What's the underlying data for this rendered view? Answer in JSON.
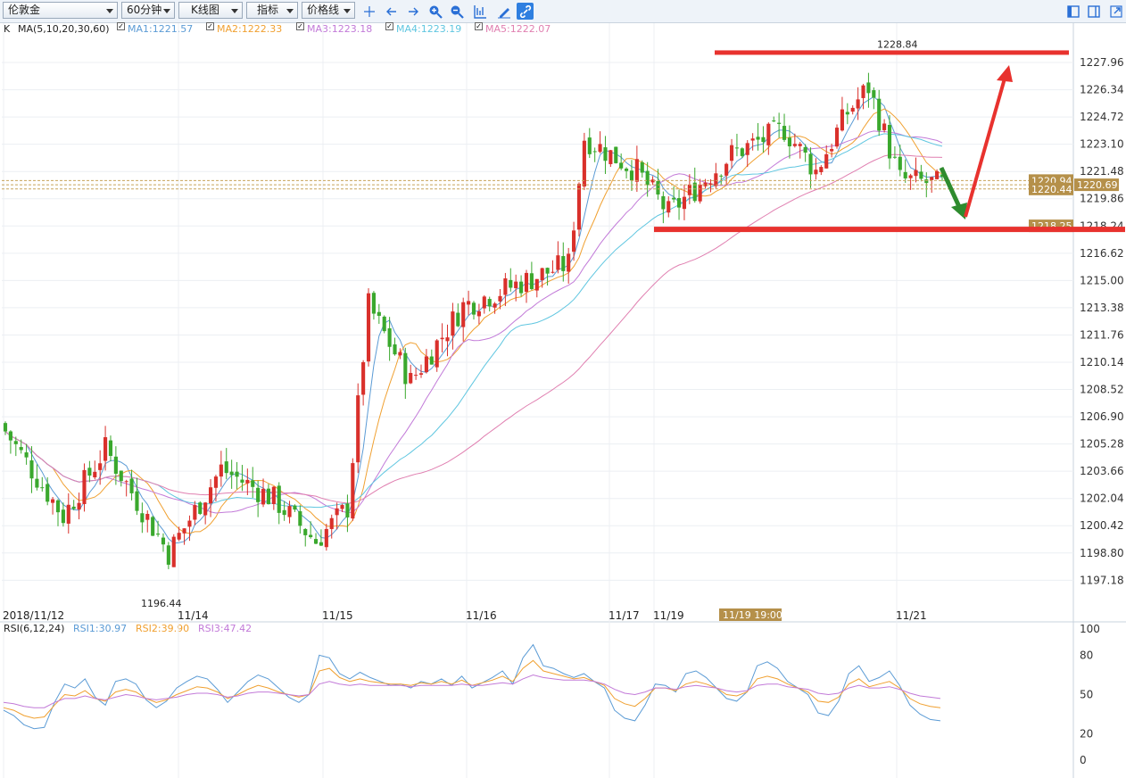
{
  "toolbar": {
    "symbol": "伦敦金",
    "period": "60分钟",
    "chart_type": "K线图",
    "indicator": "指标",
    "price_line": "价格线",
    "icons": [
      "crosshair-icon",
      "arrow-left-icon",
      "arrow-right-icon",
      "zoom-in-icon",
      "zoom-out-icon",
      "draw-line-icon",
      "pencil-icon",
      "link-icon"
    ],
    "right_icons": [
      "layout-left-icon",
      "layout-window-icon",
      "expand-icon"
    ]
  },
  "ma_legend": {
    "prefix": "K",
    "ma_title": "MA(5,10,20,30,60)",
    "items": [
      {
        "label": "MA1:1221.57",
        "color": "#5b9bd5"
      },
      {
        "label": "MA2:1222.33",
        "color": "#f0a030"
      },
      {
        "label": "MA3:1223.18",
        "color": "#c27ad8"
      },
      {
        "label": "MA4:1223.19",
        "color": "#5fc6e0"
      },
      {
        "label": "MA5:1222.07",
        "color": "#e07fb0"
      }
    ]
  },
  "price_axis": {
    "ticks": [
      "1227.96",
      "1226.34",
      "1224.72",
      "1223.10",
      "1221.48",
      "1219.86",
      "1218.24",
      "1216.62",
      "1215.00",
      "1213.38",
      "1211.76",
      "1210.14",
      "1208.52",
      "1206.90",
      "1205.28",
      "1203.66",
      "1202.04",
      "1200.42",
      "1198.80",
      "1197.18"
    ],
    "markers": [
      {
        "label": "1220.94",
        "value": 1220.94
      },
      {
        "label": "1220.69",
        "value": 1220.69
      },
      {
        "label": "1220.44",
        "value": 1220.44
      },
      {
        "label": "1218.25",
        "value": 1218.25
      }
    ]
  },
  "annotations": {
    "high_label": "1228.84",
    "low_label": "1196.44",
    "resistance_level": 1228.84,
    "support_level": 1218.25
  },
  "time_axis": {
    "labels": [
      "2018/11/12",
      "11/14",
      "11/15",
      "11/16",
      "11/17",
      "11/19",
      "11/21"
    ],
    "cursor_label": "11/19 19:00"
  },
  "rsi_legend": {
    "title": "RSI(6,12,24)",
    "items": [
      {
        "label": "RSI1:30.97",
        "color": "#5b9bd5"
      },
      {
        "label": "RSI2:39.90",
        "color": "#f0a030"
      },
      {
        "label": "RSI3:47.42",
        "color": "#c27ad8"
      }
    ]
  },
  "rsi_axis": {
    "ticks": [
      "100",
      "80",
      "50",
      "20",
      "0"
    ]
  },
  "colors": {
    "up": "#d9302b",
    "down": "#3aa82d",
    "annotation_red": "#e8322e",
    "annotation_green": "#2e8b2e",
    "marker_bg": "#b5904a"
  },
  "chart_data": {
    "type": "candlestick",
    "ylim": [
      1195.5,
      1229.5
    ],
    "x_labels": [
      "2018/11/12",
      "11/14",
      "11/15",
      "11/16",
      "11/17",
      "11/19",
      "11/21"
    ],
    "segments": [
      {
        "from": 1206.5,
        "to": 1201.0,
        "n": 12
      },
      {
        "from": 1201.0,
        "to": 1205.0,
        "n": 8
      },
      {
        "from": 1205.0,
        "to": 1198.8,
        "n": 12
      },
      {
        "from": 1198.8,
        "to": 1203.8,
        "n": 10
      },
      {
        "from": 1203.8,
        "to": 1202.0,
        "n": 10
      },
      {
        "from": 1202.0,
        "to": 1199.5,
        "n": 8
      },
      {
        "from": 1199.5,
        "to": 1201.5,
        "n": 6
      },
      {
        "from": 1201.5,
        "to": 1213.5,
        "n": 4
      },
      {
        "from": 1213.5,
        "to": 1209.0,
        "n": 8
      },
      {
        "from": 1209.0,
        "to": 1213.5,
        "n": 10
      },
      {
        "from": 1213.5,
        "to": 1216.0,
        "n": 20
      },
      {
        "from": 1216.0,
        "to": 1223.5,
        "n": 3
      },
      {
        "from": 1223.5,
        "to": 1221.5,
        "n": 10
      },
      {
        "from": 1221.5,
        "to": 1219.0,
        "n": 6
      },
      {
        "from": 1219.0,
        "to": 1222.5,
        "n": 12
      },
      {
        "from": 1222.5,
        "to": 1224.0,
        "n": 10
      },
      {
        "from": 1224.0,
        "to": 1221.5,
        "n": 6
      },
      {
        "from": 1221.5,
        "to": 1225.0,
        "n": 6
      },
      {
        "from": 1225.0,
        "to": 1226.5,
        "n": 4
      },
      {
        "from": 1226.5,
        "to": 1221.0,
        "n": 6
      },
      {
        "from": 1221.0,
        "to": 1220.7,
        "n": 8
      }
    ],
    "rsi": {
      "series": [
        {
          "name": "RSI1",
          "values": [
            38,
            34,
            27,
            24,
            25,
            44,
            58,
            55,
            62,
            48,
            42,
            60,
            62,
            58,
            46,
            40,
            45,
            55,
            60,
            64,
            62,
            54,
            44,
            52,
            60,
            65,
            62,
            55,
            48,
            44,
            50,
            80,
            78,
            66,
            62,
            67,
            63,
            60,
            57,
            58,
            55,
            60,
            58,
            62,
            57,
            64,
            55,
            59,
            63,
            68,
            58,
            78,
            88,
            72,
            70,
            66,
            63,
            66,
            60,
            55,
            38,
            32,
            30,
            42,
            58,
            57,
            52,
            66,
            68,
            63,
            55,
            47,
            45,
            52,
            72,
            75,
            70,
            60,
            55,
            50,
            36,
            34,
            45,
            66,
            72,
            60,
            63,
            68,
            57,
            42,
            35,
            31,
            30
          ]
        },
        {
          "name": "RSI2",
          "values": [
            40,
            38,
            34,
            32,
            33,
            42,
            50,
            49,
            53,
            47,
            45,
            52,
            54,
            52,
            47,
            44,
            46,
            50,
            53,
            56,
            55,
            52,
            47,
            50,
            54,
            57,
            55,
            52,
            50,
            48,
            50,
            68,
            70,
            63,
            60,
            62,
            60,
            59,
            58,
            58,
            57,
            59,
            58,
            60,
            58,
            61,
            57,
            59,
            61,
            64,
            60,
            70,
            76,
            68,
            66,
            64,
            62,
            63,
            60,
            57,
            47,
            43,
            41,
            47,
            55,
            55,
            53,
            58,
            60,
            58,
            55,
            50,
            49,
            52,
            62,
            64,
            62,
            58,
            55,
            52,
            45,
            44,
            48,
            58,
            62,
            56,
            58,
            60,
            55,
            47,
            43,
            41,
            40
          ]
        },
        {
          "name": "RSI3",
          "values": [
            44,
            43,
            41,
            40,
            40,
            44,
            47,
            47,
            49,
            47,
            46,
            48,
            50,
            49,
            47,
            46,
            47,
            48,
            50,
            51,
            51,
            50,
            48,
            49,
            51,
            52,
            52,
            51,
            50,
            49,
            50,
            58,
            60,
            58,
            57,
            58,
            57,
            57,
            57,
            57,
            56,
            57,
            57,
            57,
            57,
            58,
            57,
            57,
            58,
            59,
            58,
            62,
            65,
            63,
            62,
            61,
            61,
            61,
            60,
            58,
            54,
            51,
            50,
            52,
            55,
            55,
            54,
            56,
            57,
            56,
            55,
            53,
            52,
            53,
            57,
            58,
            58,
            56,
            55,
            54,
            51,
            50,
            51,
            55,
            57,
            55,
            55,
            56,
            54,
            51,
            49,
            48,
            47
          ]
        }
      ]
    }
  }
}
